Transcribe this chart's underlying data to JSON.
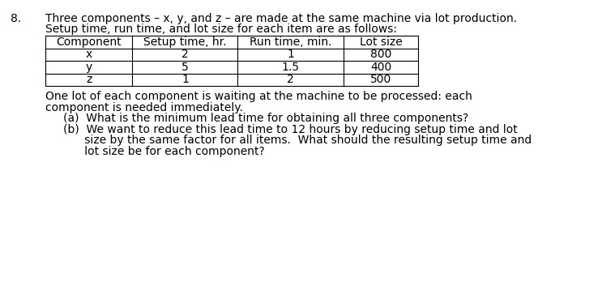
{
  "problem_number": "8.",
  "intro_line1": "Three components – x, y, and z – are made at the same machine via lot production.",
  "intro_line2": "Setup time, run time, and lot size for each item are as follows:",
  "table_headers": [
    "Component",
    "Setup time, hr.",
    "Run time, min.",
    "Lot size"
  ],
  "table_rows": [
    [
      "x",
      "2",
      "1",
      "800"
    ],
    [
      "y",
      "5",
      "1.5",
      "400"
    ],
    [
      "z",
      "1",
      "2",
      "500"
    ]
  ],
  "para1_line1": "One lot of each component is waiting at the machine to be processed: each",
  "para1_line2": "component is needed immediately.",
  "part_a": "(a)  What is the minimum lead time for obtaining all three components?",
  "part_b_line1": "(b)  We want to reduce this lead time to 12 hours by reducing setup time and lot",
  "part_b_line2": "      size by the same factor for all items.  What should the resulting setup time and",
  "part_b_line3": "      lot size be for each component?",
  "bg_color": "#ffffff",
  "text_color": "#000000",
  "font_size": 10.0,
  "font_family": "DejaVu Sans"
}
